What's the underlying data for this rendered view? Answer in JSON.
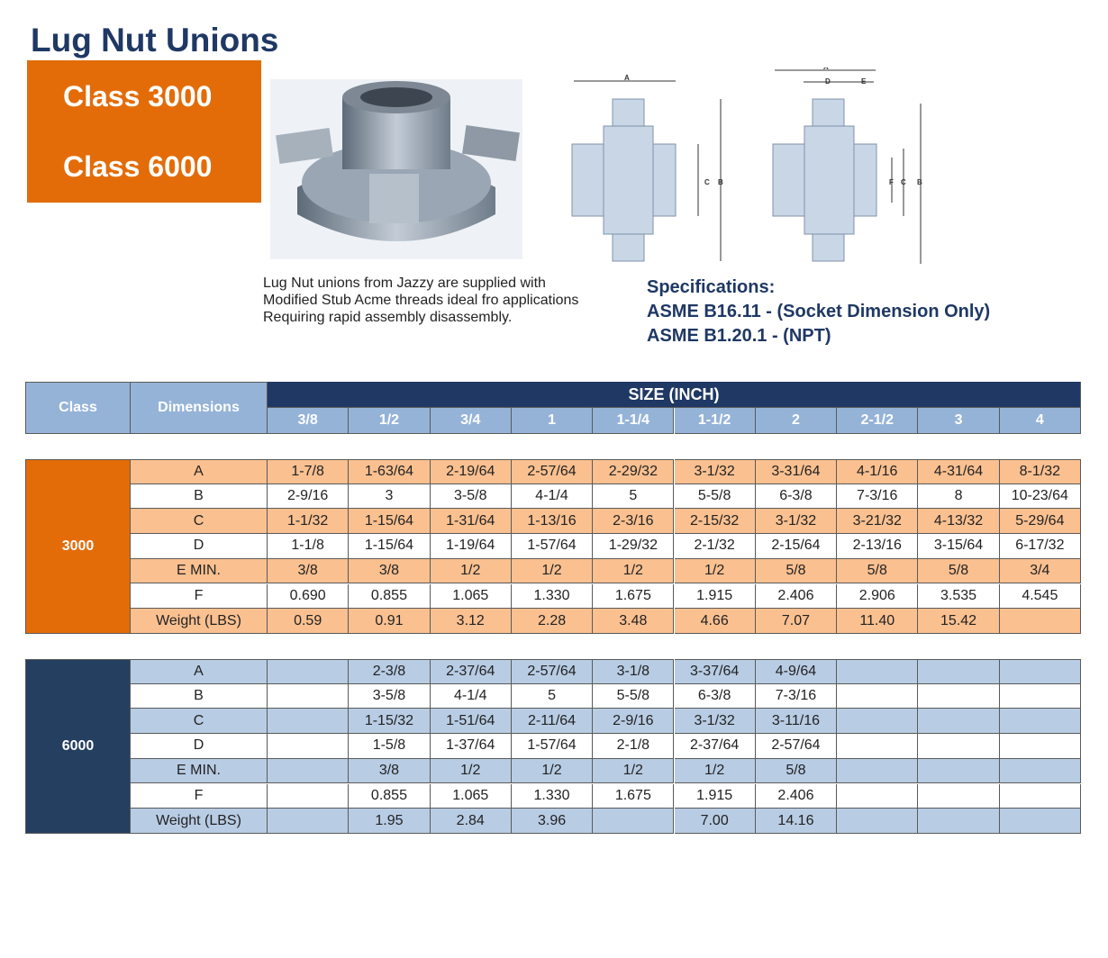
{
  "header": {
    "title": "Lug Nut Unions",
    "classes": [
      "Class 3000",
      "Class 6000"
    ]
  },
  "description": [
    "Lug Nut unions from Jazzy are supplied with",
    "Modified Stub Acme threads ideal fro applications",
    "Requiring rapid assembly disassembly."
  ],
  "specifications": {
    "title": "Specifications:",
    "lines": [
      "ASME B16.11 - (Socket Dimension Only)",
      "ASME B1.20.1 - (NPT)"
    ]
  },
  "diagrams": [
    {
      "labels": [
        "A",
        "C",
        "B"
      ]
    },
    {
      "labels": [
        "A",
        "D",
        "E",
        "F",
        "C",
        "B"
      ]
    }
  ],
  "table": {
    "class_header": "Class",
    "dimensions_header": "Dimensions",
    "size_header": "SIZE (INCH)",
    "sizes": [
      "3/8",
      "1/2",
      "3/4",
      "1",
      "1-1/4",
      "1-1/2",
      "2",
      "2-1/2",
      "3",
      "4"
    ],
    "sections": [
      {
        "class": "3000",
        "rows": [
          {
            "label": "A",
            "values": [
              "1-7/8",
              "1-63/64",
              "2-19/64",
              "2-57/64",
              "2-29/32",
              "3-1/32",
              "3-31/64",
              "4-1/16",
              "4-31/64",
              "8-1/32"
            ]
          },
          {
            "label": "B",
            "values": [
              "2-9/16",
              "3",
              "3-5/8",
              "4-1/4",
              "5",
              "5-5/8",
              "6-3/8",
              "7-3/16",
              "8",
              "10-23/64"
            ]
          },
          {
            "label": "C",
            "values": [
              "1-1/32",
              "1-15/64",
              "1-31/64",
              "1-13/16",
              "2-3/16",
              "2-15/32",
              "3-1/32",
              "3-21/32",
              "4-13/32",
              "5-29/64"
            ]
          },
          {
            "label": "D",
            "values": [
              "1-1/8",
              "1-15/64",
              "1-19/64",
              "1-57/64",
              "1-29/32",
              "2-1/32",
              "2-15/64",
              "2-13/16",
              "3-15/64",
              "6-17/32"
            ]
          },
          {
            "label": "E MIN.",
            "values": [
              "3/8",
              "3/8",
              "1/2",
              "1/2",
              "1/2",
              "1/2",
              "5/8",
              "5/8",
              "5/8",
              "3/4"
            ]
          },
          {
            "label": "F",
            "values": [
              "0.690",
              "0.855",
              "1.065",
              "1.330",
              "1.675",
              "1.915",
              "2.406",
              "2.906",
              "3.535",
              "4.545"
            ]
          },
          {
            "label": "Weight (LBS)",
            "values": [
              "0.59",
              "0.91",
              "3.12",
              "2.28",
              "3.48",
              "4.66",
              "7.07",
              "11.40",
              "15.42",
              null
            ]
          }
        ]
      },
      {
        "class": "6000",
        "rows": [
          {
            "label": "A",
            "values": [
              null,
              "2-3/8",
              "2-37/64",
              "2-57/64",
              "3-1/8",
              "3-37/64",
              "4-9/64",
              null,
              null,
              null
            ]
          },
          {
            "label": "B",
            "values": [
              null,
              "3-5/8",
              "4-1/4",
              "5",
              "5-5/8",
              "6-3/8",
              "7-3/16",
              null,
              null,
              null
            ]
          },
          {
            "label": "C",
            "values": [
              null,
              "1-15/32",
              "1-51/64",
              "2-11/64",
              "2-9/16",
              "3-1/32",
              "3-11/16",
              null,
              null,
              null
            ]
          },
          {
            "label": "D",
            "values": [
              null,
              "1-5/8",
              "1-37/64",
              "1-57/64",
              "2-1/8",
              "2-37/64",
              "2-57/64",
              null,
              null,
              null
            ]
          },
          {
            "label": "E MIN.",
            "values": [
              null,
              "3/8",
              "1/2",
              "1/2",
              "1/2",
              "1/2",
              "5/8",
              null,
              null,
              null
            ]
          },
          {
            "label": "F",
            "values": [
              null,
              "0.855",
              "1.065",
              "1.330",
              "1.675",
              "1.915",
              "2.406",
              null,
              null,
              null
            ]
          },
          {
            "label": "Weight (LBS)",
            "values": [
              null,
              "1.95",
              "2.84",
              "3.96",
              null,
              "7.00",
              "14.16",
              null,
              null,
              null
            ]
          }
        ]
      }
    ]
  }
}
